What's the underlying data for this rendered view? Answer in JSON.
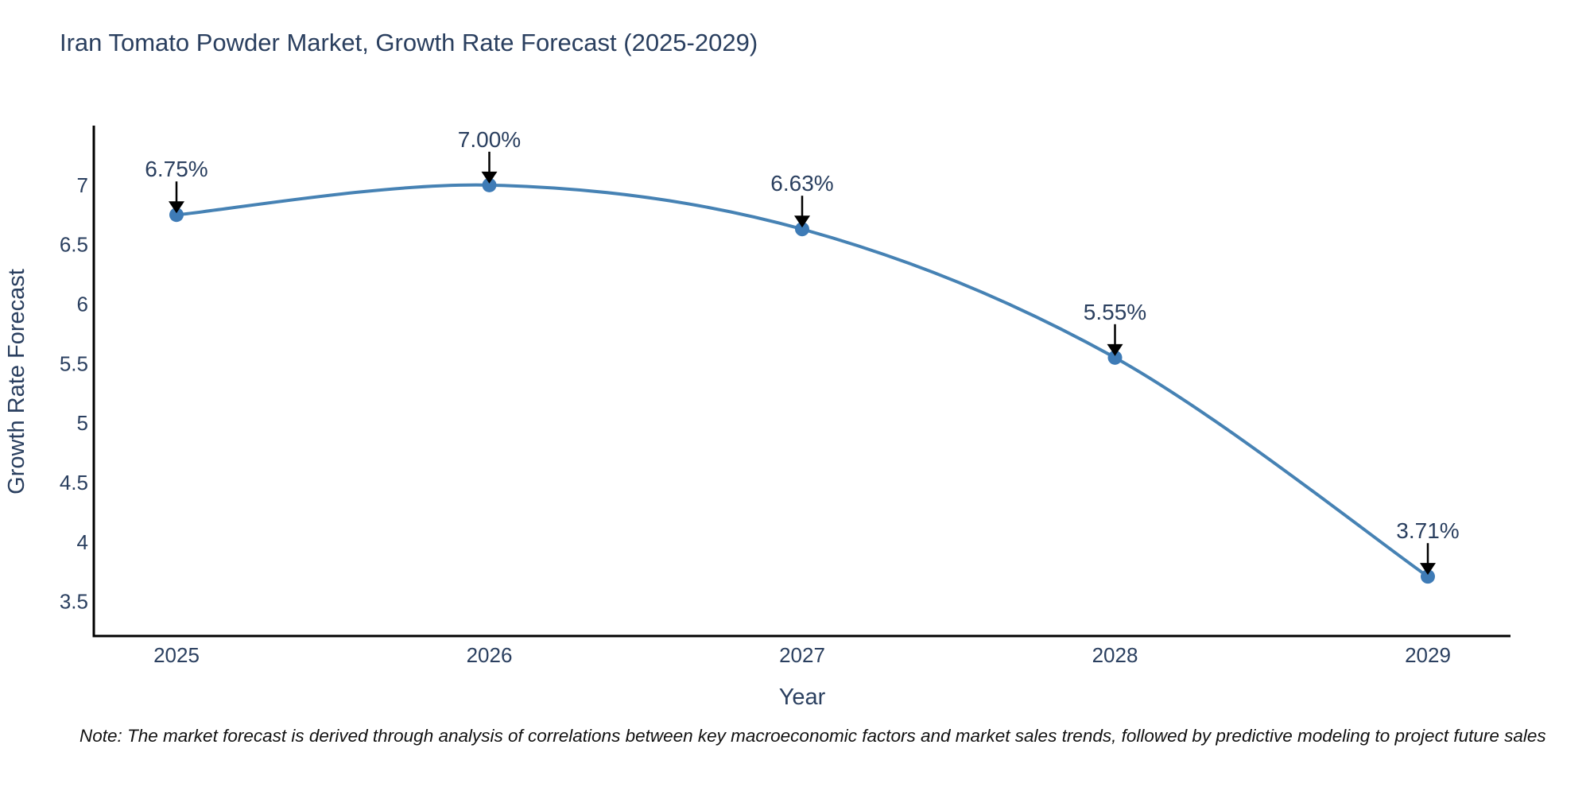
{
  "note": "Note: The market forecast is derived through analysis of correlations between key macroeconomic factors and market sales trends, followed by predictive modeling to project future sales",
  "chart_data": {
    "type": "line",
    "title": "Iran Tomato Powder Market, Growth Rate Forecast (2025-2029)",
    "xlabel": "Year",
    "ylabel": "Growth Rate Forecast",
    "x": [
      2025,
      2026,
      2027,
      2028,
      2029
    ],
    "values": [
      6.75,
      7.0,
      6.63,
      5.55,
      3.71
    ],
    "point_labels": [
      "6.75%",
      "7.00%",
      "6.63%",
      "5.55%",
      "3.71%"
    ],
    "y_ticks": [
      3.5,
      4,
      4.5,
      5,
      5.5,
      6,
      6.5,
      7
    ],
    "x_tick_labels": [
      "2025",
      "2026",
      "2027",
      "2028",
      "2029"
    ],
    "ylim": [
      3.21,
      7.5
    ],
    "grid": false,
    "legend_position": "none",
    "line_shape": "spline",
    "colors": {
      "line": "#4682b4",
      "marker": "#3e7bb6",
      "annotation_arrow": "#000000",
      "text": "#2a3f5f",
      "axis": "#000000",
      "note_text": "#111111"
    }
  }
}
